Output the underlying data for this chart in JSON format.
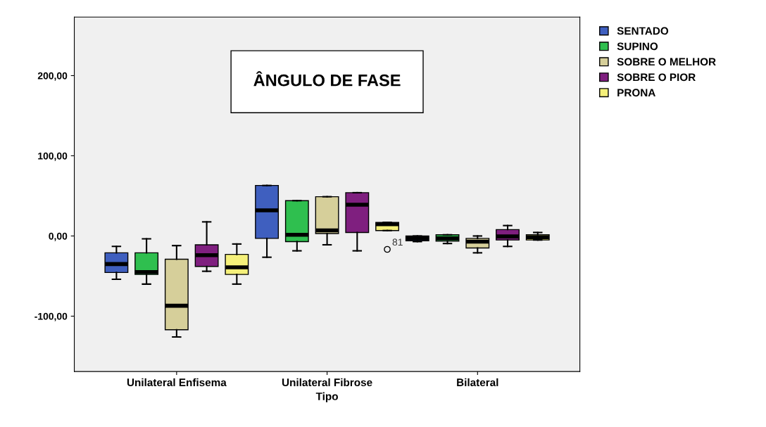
{
  "chart_data": {
    "type": "box",
    "title": "ÂNGULO DE FASE",
    "xlabel": "Tipo",
    "categories": [
      "Unilateral Enfisema",
      "Unilateral Fibrose",
      "Bilateral"
    ],
    "ylim": [
      -169,
      273
    ],
    "yticks": [
      {
        "value": -100,
        "label": "-100,00"
      },
      {
        "value": 0,
        "label": "0,00"
      },
      {
        "value": 100,
        "label": "100,00"
      },
      {
        "value": 200,
        "label": "200,00"
      }
    ],
    "grid": false,
    "legend": "top right",
    "annotations": [
      "81"
    ],
    "series": [
      {
        "name": "SENTADO",
        "color": "#3f5fbf",
        "boxes": [
          {
            "low": -54,
            "q1": -45.5,
            "median": -35,
            "q3": -21,
            "high": -13
          },
          {
            "low": -26.5,
            "q1": -3,
            "median": 32,
            "q3": 63,
            "high": 63
          },
          {
            "low": -7,
            "q1": -6,
            "median": -3,
            "q3": 0,
            "high": 0
          }
        ]
      },
      {
        "name": "SUPINO",
        "color": "#2fbf4f",
        "boxes": [
          {
            "low": -60,
            "q1": -48,
            "median": -45,
            "q3": -21,
            "high": -3.5
          },
          {
            "low": -18.5,
            "q1": -7,
            "median": 1.5,
            "q3": 44,
            "high": 44
          },
          {
            "low": -9.4,
            "q1": -6.5,
            "median": -3,
            "q3": 1.5,
            "high": 1.5
          }
        ]
      },
      {
        "name": "SOBRE O MELHOR",
        "color": "#d6cf9a",
        "boxes": [
          {
            "low": -126,
            "q1": -117,
            "median": -87,
            "q3": -29,
            "high": -12
          },
          {
            "low": -11,
            "q1": 3,
            "median": 7,
            "q3": 49,
            "high": 49
          },
          {
            "low": -21,
            "q1": -15,
            "median": -7,
            "q3": -3,
            "high": 0
          }
        ]
      },
      {
        "name": "SOBRE O PIOR",
        "color": "#7f1f7f",
        "boxes": [
          {
            "low": -44,
            "q1": -38,
            "median": -24,
            "q3": -11,
            "high": 17.6
          },
          {
            "low": -18.5,
            "q1": 4.4,
            "median": 39,
            "q3": 54,
            "high": 54
          },
          {
            "low": -13,
            "q1": -5,
            "median": -0.6,
            "q3": 8,
            "high": 13
          }
        ]
      },
      {
        "name": "PRONA",
        "color": "#f5f07a",
        "boxes": [
          {
            "low": -60,
            "q1": -48,
            "median": -39,
            "q3": -23,
            "high": -10
          },
          {
            "low": 6.8,
            "q1": 6.8,
            "median": 14.7,
            "q3": 17,
            "high": 17,
            "outliers": [
              -16.7
            ]
          },
          {
            "low": -5,
            "q1": -5,
            "median": -1.5,
            "q3": 1.5,
            "high": 4.4
          }
        ]
      }
    ]
  }
}
